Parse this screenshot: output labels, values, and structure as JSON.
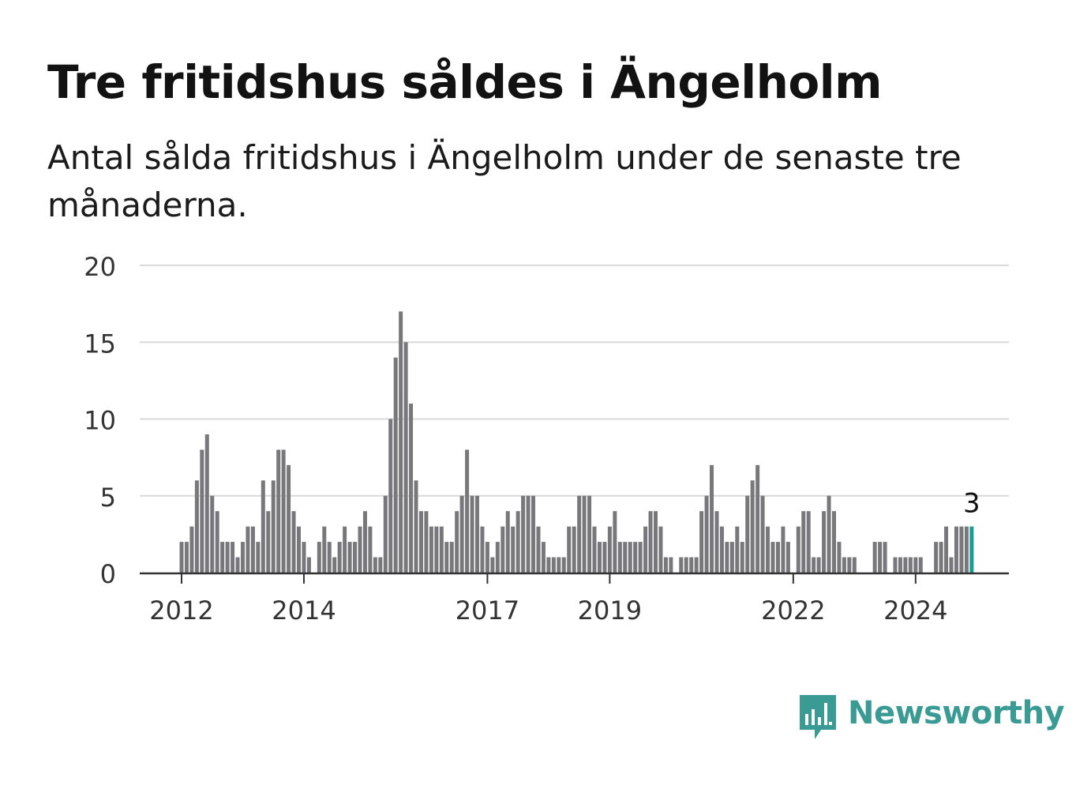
{
  "header": {
    "title": "Tre fritidshus såldes i Ängelholm",
    "subtitle": "Antal sålda fritidshus i Ängelholm under de senaste tre månaderna."
  },
  "brand": {
    "name": "Newsworthy",
    "icon": "newsworthy-chart-logo-icon",
    "color": "#3a9a94"
  },
  "colors": {
    "bar": "#78777b",
    "highlight": "#1a9e92",
    "grid": "#d9d9d9",
    "axis": "#333333"
  },
  "chart_data": {
    "type": "bar",
    "title": "Tre fritidshus såldes i Ängelholm",
    "subtitle": "Antal sålda fritidshus i Ängelholm under de senaste tre månaderna.",
    "xlabel": "",
    "ylabel": "",
    "ylim": [
      0,
      20
    ],
    "yticks": [
      0,
      5,
      10,
      15,
      20
    ],
    "grid": true,
    "legend": "none",
    "x_start": "2012-01",
    "x_end": "2024-10",
    "x_tick_labels": [
      {
        "label": "2012",
        "month": "2012-01"
      },
      {
        "label": "2014",
        "month": "2014-01"
      },
      {
        "label": "2017",
        "month": "2017-01"
      },
      {
        "label": "2019",
        "month": "2019-01"
      },
      {
        "label": "2022",
        "month": "2022-01"
      },
      {
        "label": "2024",
        "month": "2024-01"
      }
    ],
    "values": [
      2,
      2,
      3,
      6,
      8,
      9,
      5,
      4,
      2,
      2,
      2,
      1,
      2,
      3,
      3,
      2,
      6,
      4,
      6,
      8,
      8,
      7,
      4,
      3,
      2,
      1,
      0,
      2,
      3,
      2,
      1,
      2,
      3,
      2,
      2,
      3,
      4,
      3,
      1,
      1,
      5,
      10,
      14,
      17,
      15,
      11,
      6,
      4,
      4,
      3,
      3,
      3,
      2,
      2,
      4,
      5,
      8,
      5,
      5,
      3,
      2,
      1,
      2,
      3,
      4,
      3,
      4,
      5,
      5,
      5,
      3,
      2,
      1,
      1,
      1,
      1,
      3,
      3,
      5,
      5,
      5,
      3,
      2,
      2,
      3,
      4,
      2,
      2,
      2,
      2,
      2,
      3,
      4,
      4,
      3,
      1,
      1,
      0,
      1,
      1,
      1,
      1,
      4,
      5,
      7,
      4,
      3,
      2,
      2,
      3,
      2,
      5,
      6,
      7,
      5,
      3,
      2,
      2,
      3,
      2,
      0,
      3,
      4,
      4,
      1,
      1,
      4,
      5,
      4,
      2,
      1,
      1,
      1,
      0,
      0,
      0,
      2,
      2,
      2,
      0,
      1,
      1,
      1,
      1,
      1,
      1,
      0,
      0,
      2,
      2,
      3,
      1,
      3,
      3,
      3,
      3
    ],
    "highlight_last": true,
    "annotation": {
      "text": "3"
    }
  }
}
